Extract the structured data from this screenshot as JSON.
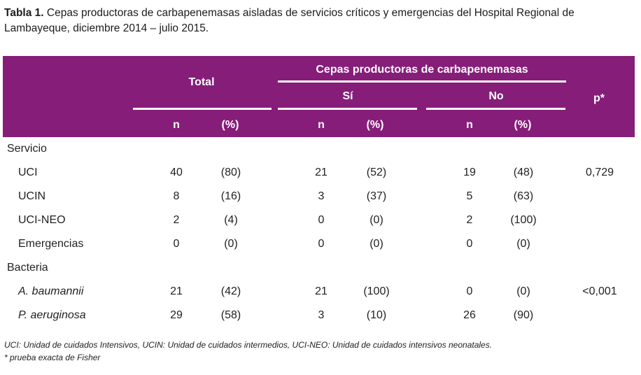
{
  "caption": {
    "lead": "Tabla 1.",
    "text": " Cepas productoras de carbapenemasas aisladas de servicios críticos y emergencias del Hospital Regional de Lambayeque, diciembre 2014 – julio 2015."
  },
  "header": {
    "total": "Total",
    "group": "Cepas productoras de carbapenemasas",
    "si": "Sí",
    "no": "No",
    "p": "p*",
    "n": "n",
    "pct": "(%)"
  },
  "groups": [
    {
      "label": "Servicio",
      "rows": [
        {
          "label": "UCI",
          "italic": false,
          "total_n": "40",
          "total_pct": "(80)",
          "si_n": "21",
          "si_pct": "(52)",
          "no_n": "19",
          "no_pct": "(48)",
          "p": "0,729"
        },
        {
          "label": "UCIN",
          "italic": false,
          "total_n": "8",
          "total_pct": "(16)",
          "si_n": "3",
          "si_pct": "(37)",
          "no_n": "5",
          "no_pct": "(63)",
          "p": ""
        },
        {
          "label": "UCI-NEO",
          "italic": false,
          "total_n": "2",
          "total_pct": "(4)",
          "si_n": "0",
          "si_pct": "(0)",
          "no_n": "2",
          "no_pct": "(100)",
          "p": ""
        },
        {
          "label": "Emergencias",
          "italic": false,
          "total_n": "0",
          "total_pct": "(0)",
          "si_n": "0",
          "si_pct": "(0)",
          "no_n": "0",
          "no_pct": "(0)",
          "p": ""
        }
      ]
    },
    {
      "label": "Bacteria",
      "rows": [
        {
          "label": "A. baumannii",
          "italic": true,
          "total_n": "21",
          "total_pct": "(42)",
          "si_n": "21",
          "si_pct": "(100)",
          "no_n": "0",
          "no_pct": "(0)",
          "p": "<0,001"
        },
        {
          "label": "P. aeruginosa",
          "italic": true,
          "total_n": "29",
          "total_pct": "(58)",
          "si_n": "3",
          "si_pct": "(10)",
          "no_n": "26",
          "no_pct": "(90)",
          "p": ""
        }
      ]
    }
  ],
  "footnotes": [
    "UCI: Unidad de cuidados Intensivos, UCIN: Unidad de cuidados intermedios, UCI-NEO: Unidad de cuidados intensivos neonatales.",
    "* prueba exacta de Fisher"
  ],
  "colors": {
    "header_bg": "#861d79",
    "header_text": "#ffffff",
    "body_text": "#222222"
  }
}
